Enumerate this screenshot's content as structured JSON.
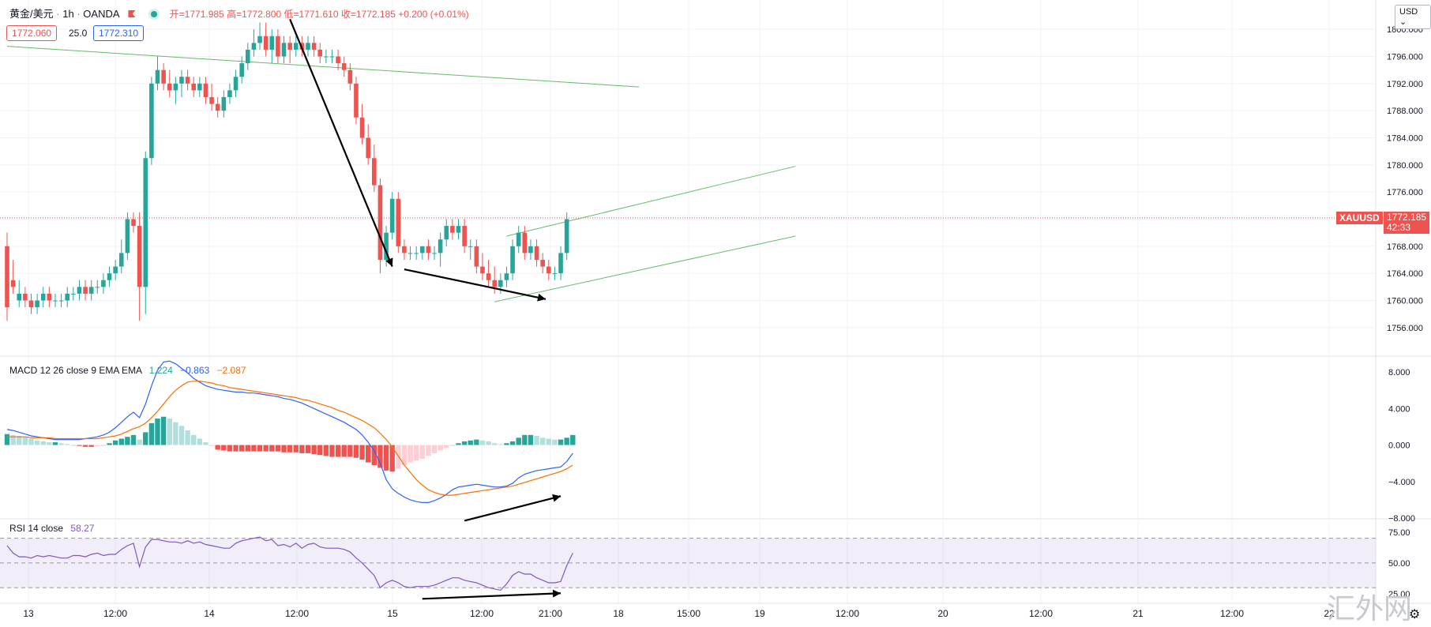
{
  "header": {
    "symbol": "黄金/美元",
    "interval": "1h",
    "broker": "OANDA",
    "ohlc_text": "开=1771.985  高=1772.800  低=1771.610  收=1772.185  +0.200 (+0.01%)"
  },
  "order_bar": {
    "sell": "1772.060",
    "spread": "25.0",
    "buy": "1772.310"
  },
  "currency_button": "USD",
  "last_price": {
    "symbol": "XAUUSD",
    "price": "1772.185",
    "countdown": "42:33",
    "value": 1772.185
  },
  "watermark": "汇外网",
  "colors": {
    "up": "#26a69a",
    "down": "#ef5350",
    "macd": "#2962ff",
    "signal": "#ff6d00",
    "rsi": "#7e57c2",
    "trend": "#66bb6a",
    "grid": "#f0f3fa"
  },
  "chart_data": [
    {
      "type": "candlestick",
      "ylim": [
        1754,
        1802
      ],
      "y_ticks": [
        "1800.000",
        "1796.000",
        "1792.000",
        "1788.000",
        "1784.000",
        "1780.000",
        "1776.000",
        "1772.000",
        "1768.000",
        "1764.000",
        "1760.000",
        "1756.000"
      ],
      "x_ticks": [
        "13",
        "12:00",
        "14",
        "12:00",
        "15",
        "12:00",
        "21:00",
        "18",
        "15:00",
        "19",
        "12:00",
        "20",
        "12:00",
        "21",
        "12:00",
        "22"
      ],
      "candles": [
        [
          1768,
          1770,
          1757,
          1759
        ],
        [
          1763,
          1766,
          1761,
          1762
        ],
        [
          1760,
          1763,
          1759,
          1761
        ],
        [
          1761,
          1762,
          1759,
          1760
        ],
        [
          1760,
          1761,
          1758,
          1759
        ],
        [
          1759,
          1761,
          1758,
          1760
        ],
        [
          1760,
          1762,
          1759,
          1761
        ],
        [
          1761,
          1762,
          1759,
          1760
        ],
        [
          1760,
          1761,
          1759,
          1760
        ],
        [
          1760,
          1761,
          1759,
          1760
        ],
        [
          1760,
          1762,
          1759,
          1761
        ],
        [
          1761,
          1762,
          1760,
          1761
        ],
        [
          1761,
          1763,
          1760,
          1762
        ],
        [
          1762,
          1763,
          1760,
          1761
        ],
        [
          1761,
          1763,
          1760,
          1762
        ],
        [
          1762,
          1763,
          1761,
          1762
        ],
        [
          1762,
          1764,
          1761,
          1763
        ],
        [
          1763,
          1765,
          1762,
          1764
        ],
        [
          1764,
          1766,
          1763,
          1765
        ],
        [
          1765,
          1769,
          1764,
          1767
        ],
        [
          1767,
          1773,
          1766,
          1772
        ],
        [
          1772,
          1773,
          1770,
          1771
        ],
        [
          1771,
          1773,
          1757,
          1762
        ],
        [
          1762,
          1782,
          1758,
          1781
        ],
        [
          1781,
          1793,
          1780,
          1792
        ],
        [
          1792,
          1796,
          1791,
          1794
        ],
        [
          1794,
          1795,
          1791,
          1792
        ],
        [
          1792,
          1794,
          1790,
          1791
        ],
        [
          1791,
          1793,
          1789,
          1792
        ],
        [
          1792,
          1794,
          1790,
          1793
        ],
        [
          1793,
          1794,
          1791,
          1792
        ],
        [
          1792,
          1793,
          1790,
          1791
        ],
        [
          1791,
          1793,
          1790,
          1792
        ],
        [
          1792,
          1793,
          1789,
          1790
        ],
        [
          1790,
          1792,
          1788,
          1789
        ],
        [
          1789,
          1790,
          1787,
          1788
        ],
        [
          1788,
          1791,
          1787,
          1790
        ],
        [
          1790,
          1792,
          1789,
          1791
        ],
        [
          1791,
          1794,
          1790,
          1793
        ],
        [
          1793,
          1796,
          1792,
          1795
        ],
        [
          1795,
          1798,
          1794,
          1797
        ],
        [
          1797,
          1800,
          1796,
          1798
        ],
        [
          1798,
          1801,
          1797,
          1799
        ],
        [
          1799,
          1801,
          1796,
          1797
        ],
        [
          1797,
          1800,
          1795,
          1799
        ],
        [
          1799,
          1800,
          1795,
          1796
        ],
        [
          1796,
          1799,
          1795,
          1798
        ],
        [
          1798,
          1799,
          1795,
          1797
        ],
        [
          1797,
          1799,
          1796,
          1798
        ],
        [
          1798,
          1799,
          1796,
          1797
        ],
        [
          1797,
          1799,
          1796,
          1798
        ],
        [
          1798,
          1799,
          1796,
          1797
        ],
        [
          1797,
          1798,
          1795,
          1796
        ],
        [
          1796,
          1797,
          1795,
          1796
        ],
        [
          1796,
          1797,
          1795,
          1796
        ],
        [
          1796,
          1797,
          1794,
          1795
        ],
        [
          1795,
          1796,
          1793,
          1794
        ],
        [
          1794,
          1795,
          1791,
          1792
        ],
        [
          1792,
          1793,
          1786,
          1787
        ],
        [
          1787,
          1789,
          1783,
          1784
        ],
        [
          1784,
          1786,
          1780,
          1781
        ],
        [
          1781,
          1783,
          1776,
          1777
        ],
        [
          1777,
          1778,
          1764,
          1766
        ],
        [
          1766,
          1771,
          1765,
          1770
        ],
        [
          1770,
          1776,
          1769,
          1775
        ],
        [
          1775,
          1776,
          1767,
          1768
        ],
        [
          1768,
          1769,
          1766,
          1767
        ],
        [
          1767,
          1768,
          1766,
          1767
        ],
        [
          1767,
          1768,
          1766,
          1767
        ],
        [
          1767,
          1768,
          1766,
          1768
        ],
        [
          1768,
          1769,
          1766,
          1767
        ],
        [
          1767,
          1768,
          1766,
          1767
        ],
        [
          1767,
          1770,
          1765,
          1769
        ],
        [
          1769,
          1772,
          1768,
          1771
        ],
        [
          1771,
          1772,
          1769,
          1770
        ],
        [
          1770,
          1772,
          1769,
          1771
        ],
        [
          1771,
          1772,
          1767,
          1768
        ],
        [
          1768,
          1769,
          1766,
          1768
        ],
        [
          1768,
          1769,
          1764,
          1765
        ],
        [
          1765,
          1767,
          1763,
          1764
        ],
        [
          1764,
          1766,
          1762,
          1763
        ],
        [
          1763,
          1765,
          1761,
          1762
        ],
        [
          1762,
          1764,
          1761,
          1763
        ],
        [
          1763,
          1765,
          1762,
          1764
        ],
        [
          1764,
          1769,
          1763,
          1768
        ],
        [
          1768,
          1771,
          1767,
          1770
        ],
        [
          1770,
          1771,
          1766,
          1767
        ],
        [
          1767,
          1769,
          1766,
          1768
        ],
        [
          1768,
          1769,
          1765,
          1766
        ],
        [
          1766,
          1767,
          1764,
          1765
        ],
        [
          1765,
          1766,
          1763,
          1764
        ],
        [
          1764,
          1765,
          1763,
          1764
        ],
        [
          1764,
          1768,
          1763,
          1767
        ],
        [
          1767,
          1773,
          1766,
          1772
        ]
      ],
      "trendlines": [
        {
          "from": [
            0,
            1797.5
          ],
          "to": [
            105,
            1791.5
          ]
        },
        {
          "from": [
            83,
            1769.5
          ],
          "to": [
            131,
            1779.8
          ]
        },
        {
          "from": [
            81,
            1759.8
          ],
          "to": [
            131,
            1769.5
          ]
        }
      ],
      "arrows": [
        {
          "from": [
            47,
            1801.5
          ],
          "to": [
            64,
            1765.0
          ]
        },
        {
          "from": [
            66,
            1764.6
          ],
          "to": [
            89.5,
            1760.2
          ]
        }
      ]
    },
    {
      "type": "bar+line",
      "title": "MACD 12 26 close 9 EMA EMA",
      "values": [
        "1.224",
        "−0.863",
        "−2.087"
      ],
      "ylim": [
        -8,
        10
      ],
      "y_ticks": [
        "8.000",
        "4.000",
        "0.000",
        "−4.000",
        "−8.000"
      ],
      "histogram": [
        1.2,
        1.1,
        1.0,
        0.9,
        0.7,
        0.5,
        0.4,
        0.3,
        0.3,
        0.2,
        0.1,
        0.0,
        -0.1,
        -0.2,
        -0.2,
        -0.1,
        0.0,
        0.2,
        0.5,
        0.7,
        0.9,
        1.1,
        0.6,
        1.4,
        2.4,
        2.9,
        3.1,
        2.9,
        2.5,
        2.1,
        1.6,
        1.1,
        0.7,
        0.3,
        -0.1,
        -0.5,
        -0.6,
        -0.7,
        -0.7,
        -0.7,
        -0.7,
        -0.7,
        -0.7,
        -0.7,
        -0.7,
        -0.7,
        -0.8,
        -0.8,
        -0.8,
        -0.9,
        -0.9,
        -1.0,
        -1.1,
        -1.2,
        -1.3,
        -1.3,
        -1.3,
        -1.3,
        -1.4,
        -1.6,
        -1.9,
        -2.2,
        -2.5,
        -2.8,
        -2.9,
        -2.6,
        -2.2,
        -1.9,
        -1.7,
        -1.5,
        -1.2,
        -0.9,
        -0.6,
        -0.3,
        0.0,
        0.2,
        0.4,
        0.5,
        0.6,
        0.5,
        0.4,
        0.2,
        0.1,
        0.2,
        0.4,
        0.8,
        1.1,
        1.1,
        1.0,
        0.8,
        0.7,
        0.6,
        0.6,
        0.8,
        1.1
      ],
      "macd": [
        1.7,
        1.6,
        1.4,
        1.2,
        1.0,
        0.9,
        0.8,
        0.7,
        0.6,
        0.6,
        0.6,
        0.6,
        0.6,
        0.7,
        0.8,
        0.9,
        1.1,
        1.4,
        1.9,
        2.5,
        3.1,
        3.6,
        3.0,
        4.5,
        6.5,
        8.2,
        9.1,
        9.2,
        8.9,
        8.4,
        7.9,
        7.3,
        6.9,
        6.5,
        6.3,
        6.1,
        6.0,
        5.9,
        5.8,
        5.8,
        5.7,
        5.7,
        5.6,
        5.5,
        5.4,
        5.3,
        5.1,
        5.0,
        4.8,
        4.6,
        4.3,
        4.0,
        3.7,
        3.4,
        3.1,
        2.8,
        2.5,
        2.1,
        1.7,
        1.1,
        0.3,
        -0.6,
        -2.0,
        -3.8,
        -4.8,
        -5.3,
        -5.7,
        -6.0,
        -6.2,
        -6.3,
        -6.3,
        -6.1,
        -5.8,
        -5.4,
        -4.9,
        -4.6,
        -4.5,
        -4.4,
        -4.3,
        -4.4,
        -4.5,
        -4.6,
        -4.6,
        -4.5,
        -4.2,
        -3.6,
        -3.2,
        -3.0,
        -2.8,
        -2.7,
        -2.6,
        -2.5,
        -2.4,
        -1.8,
        -0.9
      ],
      "signal": [
        0.9,
        0.9,
        0.9,
        0.9,
        0.8,
        0.8,
        0.8,
        0.8,
        0.7,
        0.7,
        0.7,
        0.7,
        0.7,
        0.7,
        0.7,
        0.7,
        0.8,
        0.9,
        1.0,
        1.2,
        1.5,
        1.8,
        2.0,
        2.4,
        3.0,
        3.7,
        4.5,
        5.3,
        6.0,
        6.5,
        6.9,
        7.0,
        7.0,
        6.9,
        6.8,
        6.6,
        6.5,
        6.3,
        6.2,
        6.1,
        6.0,
        5.9,
        5.8,
        5.7,
        5.6,
        5.5,
        5.4,
        5.3,
        5.2,
        5.0,
        4.9,
        4.7,
        4.5,
        4.3,
        4.1,
        3.8,
        3.6,
        3.3,
        3.0,
        2.7,
        2.3,
        1.9,
        1.3,
        0.6,
        -0.2,
        -1.2,
        -2.2,
        -3.0,
        -3.8,
        -4.4,
        -4.9,
        -5.2,
        -5.4,
        -5.5,
        -5.5,
        -5.4,
        -5.3,
        -5.2,
        -5.1,
        -5.0,
        -4.9,
        -4.8,
        -4.7,
        -4.6,
        -4.5,
        -4.3,
        -4.1,
        -3.9,
        -3.7,
        -3.5,
        -3.3,
        -3.1,
        -2.9,
        -2.6,
        -2.2
      ],
      "arrows": [
        {
          "from": [
            76,
            -8.3
          ],
          "to": [
            92,
            -5.6
          ]
        }
      ]
    },
    {
      "type": "line",
      "title": "RSI 14 close",
      "value": "58.27",
      "ylim": [
        18,
        80
      ],
      "y_ticks": [
        "75.00",
        "50.00",
        "25.00"
      ],
      "band": [
        30,
        70
      ],
      "values": [
        64,
        58,
        55,
        55,
        54,
        56,
        55,
        56,
        55,
        54,
        54,
        56,
        56,
        55,
        57,
        58,
        56,
        57,
        57,
        61,
        64,
        66,
        47,
        63,
        69,
        69,
        68,
        67,
        67,
        66,
        68,
        66,
        67,
        65,
        64,
        63,
        62,
        62,
        66,
        68,
        69,
        70,
        71,
        68,
        69,
        64,
        65,
        63,
        66,
        62,
        65,
        66,
        63,
        62,
        62,
        62,
        61,
        59,
        54,
        50,
        45,
        40,
        30,
        34,
        36,
        34,
        31,
        30,
        31,
        31,
        31,
        32,
        34,
        36,
        38,
        38,
        36,
        35,
        34,
        32,
        30,
        29,
        28,
        33,
        40,
        43,
        41,
        41,
        38,
        36,
        34,
        34,
        35,
        48,
        58
      ],
      "arrows": [
        {
          "from": [
            69,
            21.0
          ],
          "to": [
            92,
            25.5
          ]
        }
      ]
    }
  ]
}
